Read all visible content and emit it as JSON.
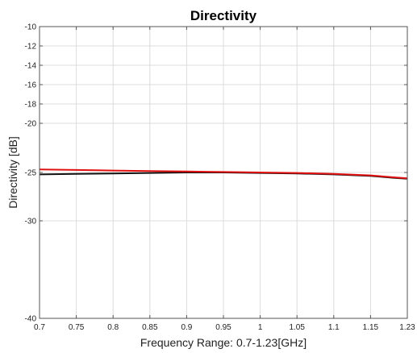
{
  "chart_data": {
    "type": "line",
    "title": "Directivity",
    "xlabel": "Frequency Range: 0.7-1.23[GHz]",
    "ylabel": "Directivity [dB]",
    "xlim": [
      0.7,
      1.23
    ],
    "ylim": [
      -40,
      -10
    ],
    "y_scale": "nonuniform-tick-spacing",
    "grid": true,
    "x_ticks": [
      0.7,
      0.75,
      0.8,
      0.85,
      0.9,
      0.95,
      1,
      1.05,
      1.1,
      1.15,
      1.23
    ],
    "x_tick_labels": [
      "0.7",
      "0.75",
      "0.8",
      "0.85",
      "0.9",
      "0.95",
      "1",
      "1.05",
      "1.1",
      "1.15",
      "1.23"
    ],
    "y_ticks": [
      -10,
      -12,
      -14,
      -16,
      -18,
      -20,
      -25,
      -30,
      -40
    ],
    "y_tick_labels": [
      "-10",
      "-12",
      "-14",
      "-16",
      "-18",
      "-20",
      "-25",
      "-30",
      "-40"
    ],
    "series": [
      {
        "color": "#e01010",
        "x": [
          0.7,
          0.75,
          0.8,
          0.85,
          0.9,
          0.95,
          1.0,
          1.05,
          1.1,
          1.15,
          1.2,
          1.23
        ],
        "y": [
          -24.7,
          -24.75,
          -24.8,
          -24.85,
          -24.9,
          -24.95,
          -25.0,
          -25.05,
          -25.15,
          -25.3,
          -25.5,
          -25.6
        ]
      },
      {
        "color": "#111111",
        "x": [
          0.7,
          0.75,
          0.8,
          0.85,
          0.9,
          0.95,
          1.0,
          1.05,
          1.1,
          1.15,
          1.2,
          1.23
        ],
        "y": [
          -25.2,
          -25.15,
          -25.1,
          -25.05,
          -25.0,
          -25.0,
          -25.05,
          -25.1,
          -25.2,
          -25.35,
          -25.55,
          -25.65
        ]
      }
    ]
  }
}
